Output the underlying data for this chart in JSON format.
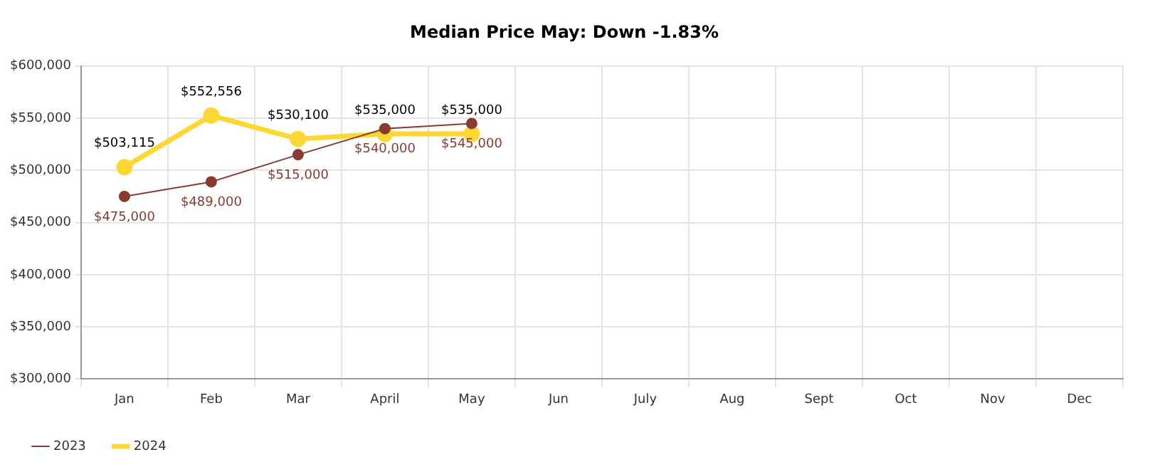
{
  "chart_data": {
    "type": "line",
    "title": "Median Price May: Down -1.83%",
    "categories": [
      "Jan",
      "Feb",
      "Mar",
      "April",
      "May",
      "Jun",
      "July",
      "Aug",
      "Sept",
      "Oct",
      "Nov",
      "Dec"
    ],
    "series": [
      {
        "name": "2023",
        "color": "#8b3a2f",
        "values": [
          475000,
          489000,
          515000,
          540000,
          545000,
          null,
          null,
          null,
          null,
          null,
          null,
          null
        ],
        "value_labels": [
          "$475,000",
          "$489,000",
          "$515,000",
          "$540,000",
          "$545,000",
          null,
          null,
          null,
          null,
          null,
          null,
          null
        ]
      },
      {
        "name": "2024",
        "color": "#fdd835",
        "values": [
          503115,
          552556,
          530100,
          535000,
          535000,
          null,
          null,
          null,
          null,
          null,
          null,
          null
        ],
        "value_labels": [
          "$503,115",
          "$552,556",
          "$530,100",
          "$535,000",
          "$535,000",
          null,
          null,
          null,
          null,
          null,
          null,
          null
        ]
      }
    ],
    "ylim": [
      300000,
      600000
    ],
    "yticks": [
      {
        "value": 300000,
        "label": "$300,000"
      },
      {
        "value": 350000,
        "label": "$350,000"
      },
      {
        "value": 400000,
        "label": "$400,000"
      },
      {
        "value": 450000,
        "label": "$450,000"
      },
      {
        "value": 500000,
        "label": "$500,000"
      },
      {
        "value": 550000,
        "label": "$550,000"
      },
      {
        "value": 600000,
        "label": "$600,000"
      }
    ],
    "grid": true,
    "legend": "bottom left",
    "marker": "circle",
    "line_style": "solid"
  }
}
